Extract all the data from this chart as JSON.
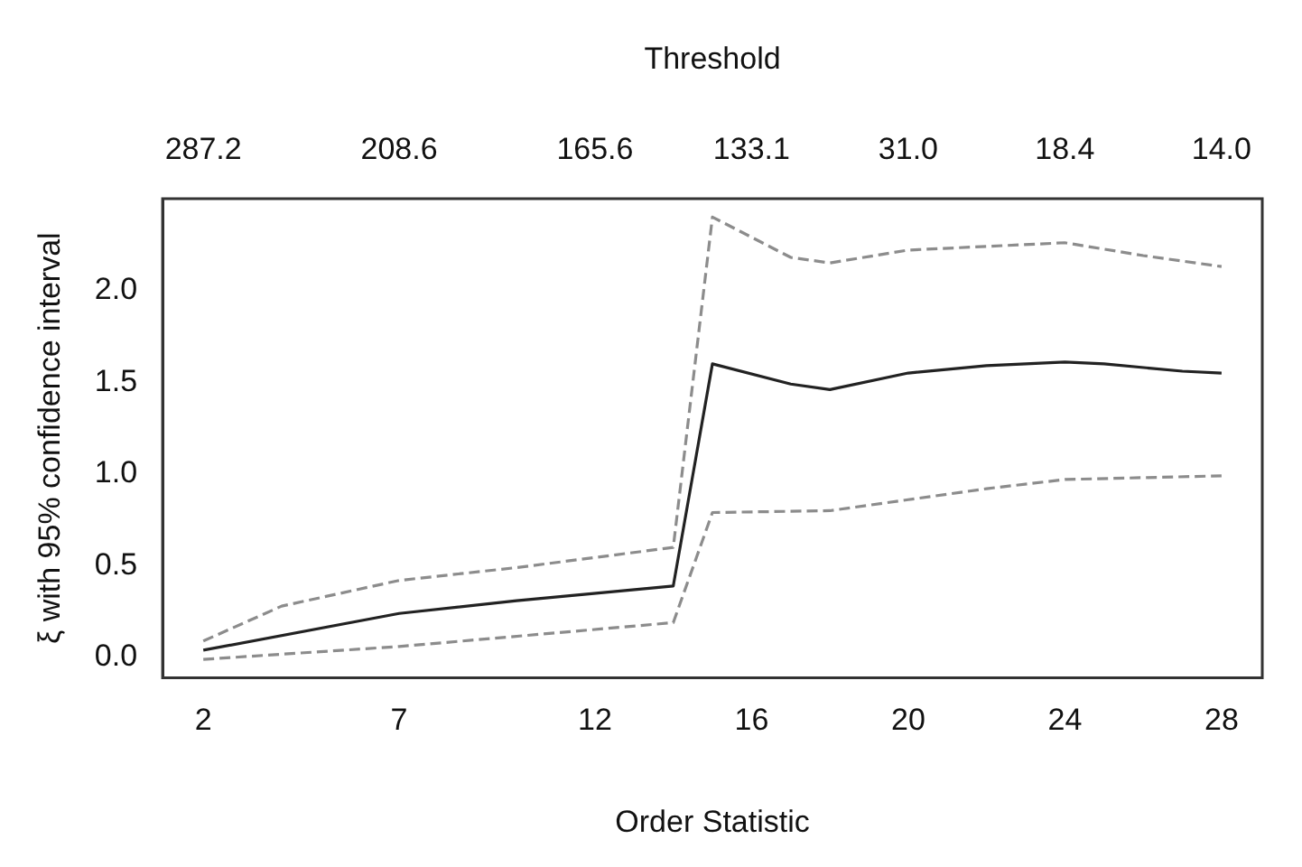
{
  "chart_data": {
    "type": "line",
    "xlabel": "Order Statistic",
    "ylabel": "ξ with 95% confidence interval",
    "x": [
      2,
      7,
      10,
      14,
      15,
      17,
      18,
      20,
      22,
      24,
      25,
      27,
      28
    ],
    "series": [
      {
        "color": "#222222",
        "line_style": "solid",
        "values": [
          0.04,
          0.24,
          0.31,
          0.39,
          1.6,
          1.49,
          1.46,
          1.55,
          1.59,
          1.61,
          1.6,
          1.56,
          1.55
        ]
      },
      {
        "color": "#8c8c8c",
        "line_style": "dashed",
        "x": [
          2,
          4,
          7,
          10,
          14,
          15,
          17,
          18,
          20,
          24,
          26,
          28
        ],
        "values": [
          0.09,
          0.28,
          0.42,
          0.49,
          0.6,
          2.4,
          2.18,
          2.15,
          2.22,
          2.26,
          2.19,
          2.13
        ]
      },
      {
        "color": "#8c8c8c",
        "line_style": "dashed",
        "x": [
          2,
          7,
          14,
          15,
          18,
          20,
          22,
          24,
          28
        ],
        "values": [
          -0.01,
          0.06,
          0.19,
          0.79,
          0.8,
          0.86,
          0.92,
          0.97,
          0.99
        ]
      }
    ],
    "xlim": [
      0.96,
      29.04
    ],
    "xticks": [
      2,
      7,
      12,
      16,
      20,
      24,
      28
    ],
    "annotations": [
      "Threshold",
      "287.2",
      "208.6",
      "165.6",
      "133.1",
      "31.0",
      "18.4",
      "14.0"
    ],
    "ylim": [
      -0.11,
      2.5
    ],
    "yticks": [
      {
        "value": 0,
        "label": "0.0"
      },
      {
        "value": 0.5,
        "label": "0.5"
      },
      {
        "value": 1,
        "label": "1.0"
      },
      {
        "value": 1.5,
        "label": "1.5"
      },
      {
        "value": 2,
        "label": "2.0"
      }
    ],
    "grid": false,
    "legend": false,
    "marker": "none"
  }
}
